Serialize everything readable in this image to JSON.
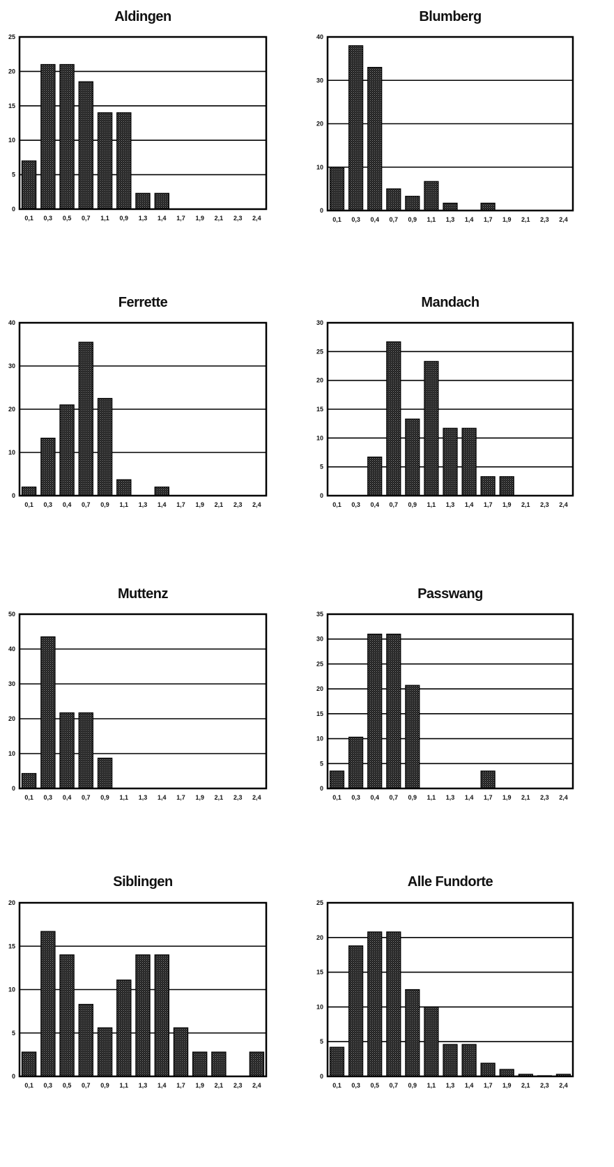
{
  "chart_data": [
    {
      "type": "bar",
      "title": "Aldingen",
      "categories": [
        "0,1",
        "0,3",
        "0,5",
        "0,7",
        "1,1",
        "0,9",
        "1,3",
        "1,4",
        "1,7",
        "1,9",
        "2,1",
        "2,3",
        "2,4"
      ],
      "values": [
        7,
        21,
        21,
        18.5,
        14,
        14,
        2.3,
        2.3,
        0,
        0,
        0,
        0,
        0
      ],
      "ylim": [
        0,
        25
      ],
      "yticks": [
        "0",
        "5",
        "10",
        "15",
        "20",
        "25"
      ],
      "grid": true
    },
    {
      "type": "bar",
      "title": "Blumberg",
      "categories": [
        "0,1",
        "0,3",
        "0,4",
        "0,7",
        "0,9",
        "1,1",
        "1,3",
        "1,4",
        "1,7",
        "1,9",
        "2,1",
        "2,3",
        "2,4"
      ],
      "values": [
        10,
        38,
        33,
        5,
        3.3,
        6.7,
        1.7,
        0,
        1.7,
        0,
        0,
        0,
        0
      ],
      "ylim": [
        0,
        40
      ],
      "yticks": [
        "0",
        "10",
        "20",
        "30",
        "40"
      ],
      "grid": true
    },
    {
      "type": "bar",
      "title": "Ferrette",
      "categories": [
        "0,1",
        "0,3",
        "0,4",
        "0,7",
        "0,9",
        "1,1",
        "1,3",
        "1,4",
        "1,7",
        "1,9",
        "2,1",
        "2,3",
        "2,4"
      ],
      "values": [
        2,
        13.3,
        21,
        35.5,
        22.5,
        3.7,
        0,
        2,
        0,
        0,
        0,
        0,
        0
      ],
      "ylim": [
        0,
        40
      ],
      "yticks": [
        "0",
        "10",
        "20",
        "30",
        "40"
      ],
      "grid": true
    },
    {
      "type": "bar",
      "title": "Mandach",
      "categories": [
        "0,1",
        "0,3",
        "0,4",
        "0,7",
        "0,9",
        "1,1",
        "1,3",
        "1,4",
        "1,7",
        "1,9",
        "2,1",
        "2,3",
        "2,4"
      ],
      "values": [
        0,
        0,
        6.7,
        26.7,
        13.3,
        23.3,
        11.7,
        11.7,
        3.3,
        3.3,
        0,
        0,
        0
      ],
      "ylim": [
        0,
        30
      ],
      "yticks": [
        "0",
        "5",
        "10",
        "15",
        "20",
        "25",
        "30"
      ],
      "grid": true
    },
    {
      "type": "bar",
      "title": "Muttenz",
      "categories": [
        "0,1",
        "0,3",
        "0,4",
        "0,7",
        "0,9",
        "1,1",
        "1,3",
        "1,4",
        "1,7",
        "1,9",
        "2,1",
        "2,3",
        "2,4"
      ],
      "values": [
        4.3,
        43.5,
        21.7,
        21.7,
        8.7,
        0,
        0,
        0,
        0,
        0,
        0,
        0,
        0
      ],
      "ylim": [
        0,
        50
      ],
      "yticks": [
        "0",
        "10",
        "20",
        "30",
        "40",
        "50"
      ],
      "grid": true
    },
    {
      "type": "bar",
      "title": "Passwang",
      "categories": [
        "0,1",
        "0,3",
        "0,4",
        "0,7",
        "0,9",
        "1,1",
        "1,3",
        "1,4",
        "1,7",
        "1,9",
        "2,1",
        "2,3",
        "2,4"
      ],
      "values": [
        3.5,
        10.3,
        31,
        31,
        20.7,
        0,
        0,
        0,
        3.5,
        0,
        0,
        0,
        0
      ],
      "ylim": [
        0,
        35
      ],
      "yticks": [
        "0",
        "5",
        "10",
        "15",
        "20",
        "25",
        "30",
        "35"
      ],
      "grid": true
    },
    {
      "type": "bar",
      "title": "Siblingen",
      "categories": [
        "0,1",
        "0,3",
        "0,5",
        "0,7",
        "0,9",
        "1,1",
        "1,3",
        "1,4",
        "1,7",
        "1,9",
        "2,1",
        "2,3",
        "2,4"
      ],
      "values": [
        2.8,
        16.7,
        14,
        8.3,
        5.6,
        11.1,
        14,
        14,
        5.6,
        2.8,
        2.8,
        0,
        2.8
      ],
      "ylim": [
        0,
        20
      ],
      "yticks": [
        "0",
        "5",
        "10",
        "15",
        "20"
      ],
      "grid": true
    },
    {
      "type": "bar",
      "title": "Alle Fundorte",
      "categories": [
        "0,1",
        "0,3",
        "0,5",
        "0,7",
        "0,9",
        "1,1",
        "1,3",
        "1,4",
        "1,7",
        "1,9",
        "2,1",
        "2,3",
        "2,4"
      ],
      "values": [
        4.2,
        18.8,
        20.8,
        20.8,
        12.5,
        10,
        4.6,
        4.6,
        1.9,
        1,
        0.3,
        0.1,
        0.3
      ],
      "ylim": [
        0,
        25
      ],
      "yticks": [
        "0",
        "5",
        "10",
        "15",
        "20",
        "25"
      ],
      "grid": true
    }
  ]
}
